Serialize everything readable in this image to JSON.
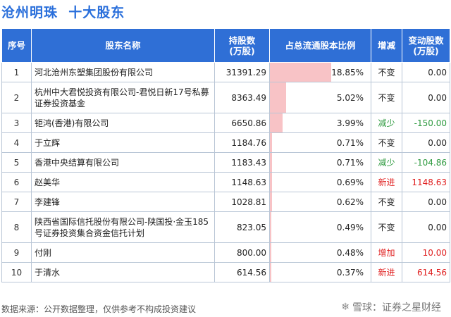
{
  "header": {
    "title": "沧州明珠  十大股东"
  },
  "columns": {
    "rank": "序号",
    "name": "股东名称",
    "shares": "持股数\n(万股)",
    "ratio": "占总流通股本比例",
    "change": "增减",
    "delta": "变动股数\n(万股)"
  },
  "rows": [
    {
      "rank": "1",
      "name": "河北沧州东塑集团股份有限公司",
      "shares": "31391.29",
      "ratio": "18.85%",
      "ratio_value": 18.85,
      "change": "不变",
      "change_type": "same",
      "delta": "0.00",
      "delta_type": "same"
    },
    {
      "rank": "2",
      "name": "杭州中大君悦投资有限公司-君悦日新17号私募证券投资基金",
      "shares": "8363.49",
      "ratio": "5.02%",
      "ratio_value": 5.02,
      "change": "不变",
      "change_type": "same",
      "delta": "0.00",
      "delta_type": "same"
    },
    {
      "rank": "3",
      "name": "钜鸿(香港)有限公司",
      "shares": "6650.86",
      "ratio": "3.99%",
      "ratio_value": 3.99,
      "change": "减少",
      "change_type": "down",
      "delta": "-150.00",
      "delta_type": "down"
    },
    {
      "rank": "4",
      "name": "于立辉",
      "shares": "1184.76",
      "ratio": "0.71%",
      "ratio_value": 0.71,
      "change": "不变",
      "change_type": "same",
      "delta": "0.00",
      "delta_type": "same"
    },
    {
      "rank": "5",
      "name": "香港中央结算有限公司",
      "shares": "1183.43",
      "ratio": "0.71%",
      "ratio_value": 0.71,
      "change": "减少",
      "change_type": "down",
      "delta": "-104.86",
      "delta_type": "down"
    },
    {
      "rank": "6",
      "name": "赵美华",
      "shares": "1148.63",
      "ratio": "0.69%",
      "ratio_value": 0.69,
      "change": "新进",
      "change_type": "up",
      "delta": "1148.63",
      "delta_type": "up"
    },
    {
      "rank": "7",
      "name": "李建锋",
      "shares": "1028.81",
      "ratio": "0.62%",
      "ratio_value": 0.62,
      "change": "不变",
      "change_type": "same",
      "delta": "0.00",
      "delta_type": "same"
    },
    {
      "rank": "8",
      "name": "陕西省国际信托股份有限公司-陕国投·金玉185号证券投资集合资金信托计划",
      "shares": "823.05",
      "ratio": "0.49%",
      "ratio_value": 0.49,
      "change": "不变",
      "change_type": "same",
      "delta": "0.00",
      "delta_type": "same"
    },
    {
      "rank": "9",
      "name": "付刚",
      "shares": "800.00",
      "ratio": "0.48%",
      "ratio_value": 0.48,
      "change": "增加",
      "change_type": "up",
      "delta": "10.00",
      "delta_type": "up"
    },
    {
      "rank": "10",
      "name": "于清水",
      "shares": "614.56",
      "ratio": "0.37%",
      "ratio_value": 0.37,
      "change": "新进",
      "change_type": "up",
      "delta": "614.56",
      "delta_type": "up"
    }
  ],
  "footer": {
    "source": "数据来源：公开数据整理，仅供参考不构成投资建议",
    "brand": "雪球：证券之星财经",
    "brand_icon": "snowball-icon"
  },
  "colors": {
    "header_bg": "#2f6fd6",
    "title": "#2a6fdb",
    "ratio_bar": "#f8c3c6",
    "down": "#2e9a3f",
    "up": "#e02020"
  }
}
